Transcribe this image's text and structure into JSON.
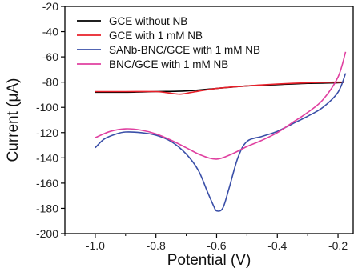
{
  "chart_data": {
    "type": "line",
    "title": "",
    "xlabel": "Potential (V)",
    "ylabel": "Current (μA)",
    "xlim": [
      -1.1,
      -0.15
    ],
    "ylim": [
      -200,
      -20
    ],
    "x_ticks": [
      -1.0,
      -0.8,
      -0.6,
      -0.4,
      -0.2
    ],
    "x_tick_labels": [
      "-1.0",
      "-0.8",
      "-0.6",
      "-0.4",
      "-0.2"
    ],
    "y_ticks": [
      -20,
      -40,
      -60,
      -80,
      -100,
      -120,
      -140,
      -160,
      -180,
      -200
    ],
    "y_tick_labels": [
      "-20",
      "-40",
      "-60",
      "-80",
      "-100",
      "-120",
      "-140",
      "-160",
      "-180",
      "-200"
    ],
    "grid": false,
    "legend_position": "top-left",
    "series": [
      {
        "name": "GCE without NB",
        "color": "#000000",
        "x": [
          -1.0,
          -0.9,
          -0.8,
          -0.7,
          -0.6,
          -0.5,
          -0.4,
          -0.3,
          -0.2,
          -0.18
        ],
        "y": [
          -88,
          -88,
          -87.5,
          -87,
          -85,
          -83,
          -82,
          -81,
          -80.5,
          -80
        ]
      },
      {
        "name": "GCE with 1 mM NB",
        "color": "#e8202a",
        "x": [
          -1.0,
          -0.9,
          -0.8,
          -0.76,
          -0.72,
          -0.68,
          -0.6,
          -0.5,
          -0.4,
          -0.3,
          -0.2,
          -0.18
        ],
        "y": [
          -87.5,
          -87.5,
          -87.5,
          -88.5,
          -89.5,
          -88,
          -85,
          -83,
          -81.5,
          -80.5,
          -80,
          -80
        ]
      },
      {
        "name": "SANb-BNC/GCE with 1 mM NB",
        "color": "#3a4fa8",
        "x": [
          -1.0,
          -0.97,
          -0.93,
          -0.9,
          -0.85,
          -0.8,
          -0.75,
          -0.7,
          -0.66,
          -0.63,
          -0.61,
          -0.6,
          -0.58,
          -0.56,
          -0.53,
          -0.5,
          -0.45,
          -0.4,
          -0.35,
          -0.3,
          -0.25,
          -0.2,
          -0.175
        ],
        "y": [
          -132,
          -125,
          -121,
          -119.5,
          -120,
          -122,
          -127,
          -137,
          -150,
          -167,
          -178,
          -182,
          -180,
          -165,
          -140,
          -127,
          -123,
          -119,
          -113,
          -107,
          -100,
          -88,
          -73
        ]
      },
      {
        "name": "BNC/GCE with 1 mM NB",
        "color": "#e040a0",
        "x": [
          -1.0,
          -0.95,
          -0.9,
          -0.85,
          -0.8,
          -0.75,
          -0.7,
          -0.65,
          -0.6,
          -0.55,
          -0.5,
          -0.45,
          -0.4,
          -0.35,
          -0.3,
          -0.25,
          -0.2,
          -0.175
        ],
        "y": [
          -124,
          -119,
          -117,
          -118,
          -121,
          -126,
          -132,
          -138,
          -141,
          -137,
          -131,
          -126,
          -120,
          -112,
          -104,
          -94,
          -76,
          -56
        ]
      }
    ]
  }
}
